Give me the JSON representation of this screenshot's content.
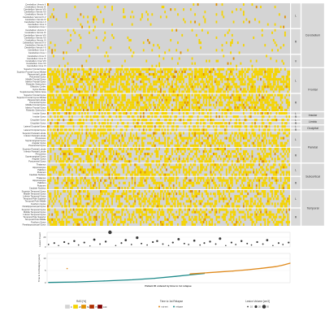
{
  "heatmap": {
    "labels": [
      "Cerebellum Vermis X",
      "Cerebellum Vermis IX",
      "Cerebellum Vermis VIII",
      "Cerebellum Vermis VII",
      "Cerebellum Vermis VI",
      "Cerebellum Vermis IV-V",
      "Cerebellum Vermis III",
      "Cerebellum Vermis I-II",
      "Cerebellum Crus II",
      "Cerebellum Crus I",
      "Cerebellum Vermis X",
      "Cerebellum Vermis IX",
      "Cerebellum Vermis VIII",
      "Cerebellum Vermis VII",
      "Cerebellum Vermis VI",
      "Cerebellum Vermis IV-V",
      "Cerebellum Vermis III",
      "Cerebellum Vermis I-II",
      "Cerebellum Crus II",
      "Cerebellum Crus I",
      "Cerebellum Crus X",
      "Cerebellum Crus IX",
      "Cerebellum Crus VIII",
      "Cerebellum Crus VII",
      "Cerebellum Crus VI",
      "Superior Frontal Gyrus",
      "Superior Frontal Gyrus Medial",
      "Paracentral Lobule",
      "Precentral Gyrus",
      "Middle Frontal Gyrus",
      "Inferior Frontal Gyrus",
      "Rolandic Operculum",
      "Olfactory Cortex",
      "Gyrus Rectus",
      "Supplementary Motor Area",
      "Superior Frontal Gyrus",
      "Superior Frontal Gyrus Medial",
      "Paracentral Lobule",
      "Precentral Gyrus",
      "Middle Frontal Gyrus",
      "Inferior Frontal Gyrus",
      "Rolandic Operculum",
      "Insular Gyrus",
      "Insular Gyrus",
      "Cingulate Gyrus",
      "Cingulate Gyrus",
      "Lateral Occipital Gyrus",
      "Lateral Occipital Gyrus",
      "Superior Parietal Lobule",
      "Inferior Parietal Lobule",
      "Precuneus",
      "Supramarginal Gyrus",
      "Angular Gyrus",
      "Postcentral Gyrus",
      "Superior Parietal Lobule",
      "Inferior Parietal Lobule",
      "Precuneus",
      "Supramarginal Gyrus",
      "Angular Gyrus",
      "Postcentral Gyrus",
      "Thalamus",
      "Hippocampus",
      "Pallidum",
      "Putamen",
      "Caudate Nucleus",
      "Thalamus",
      "Hippocampus",
      "Pallidum",
      "Putamen",
      "Caudate Nucleus",
      "Superior Temporal Gyrus",
      "Middle Temporal Gyrus",
      "Inferior Temporal Gyrus",
      "Temporal Pole Superior",
      "Temporal Pole Middle",
      "Fusiform Gyrus",
      "Parahippocampal Gyrus",
      "Superior Temporal Gyrus",
      "Middle Temporal Gyrus",
      "Inferior Temporal Gyrus",
      "Temporal Pole Superior",
      "Temporal Pole Middle",
      "Fusiform Gyrus",
      "Parahippocampal Gyrus"
    ],
    "groups": [
      {
        "side": "L",
        "rows": 10
      },
      {
        "side": "R",
        "rows": 10
      },
      {
        "side": "V",
        "rows": 5
      },
      {
        "side": "L",
        "rows": 10
      },
      {
        "side": "R",
        "rows": 7
      },
      {
        "side": "L",
        "rows": 1
      },
      {
        "side": "R",
        "rows": 1
      },
      {
        "side": "L",
        "rows": 1
      },
      {
        "side": "R",
        "rows": 1
      },
      {
        "side": "L",
        "rows": 1
      },
      {
        "side": "R",
        "rows": 1
      },
      {
        "side": "L",
        "rows": 6
      },
      {
        "side": "R",
        "rows": 6
      },
      {
        "side": "L",
        "rows": 5
      },
      {
        "side": "R",
        "rows": 5
      },
      {
        "side": "L",
        "rows": 7
      },
      {
        "side": "R",
        "rows": 7
      }
    ],
    "regions": [
      {
        "name": "Cerebellum",
        "from": 0,
        "to": 2
      },
      {
        "name": "Frontal",
        "from": 3,
        "to": 4
      },
      {
        "name": "Insular",
        "from": 5,
        "to": 6
      },
      {
        "name": "Limbic",
        "from": 7,
        "to": 8
      },
      {
        "name": "Occipital",
        "from": 9,
        "to": 10
      },
      {
        "name": "Parietal",
        "from": 11,
        "to": 12
      },
      {
        "name": "Subcortical",
        "from": 13,
        "to": 14
      },
      {
        "name": "Temporal",
        "from": 15,
        "to": 16
      }
    ]
  },
  "lesion_count": {
    "ylabel": "Lesion Count",
    "ticks": [
      0,
      20
    ]
  },
  "relapse": {
    "ylabel": "Time to 1st Relapse (years)",
    "xlabel": "Patient ID ordered by time to 1st relapse",
    "ticks": [
      0,
      5,
      10
    ]
  },
  "legends": {
    "ras": {
      "title": "RAS [%]",
      "items": [
        {
          "label": "0",
          "color": "#d4d4d4"
        },
        {
          "label": "25",
          "color": "#f5d400"
        },
        {
          "label": "50",
          "color": "#e09000"
        },
        {
          "label": "75",
          "color": "#b03000"
        },
        {
          "label": "100",
          "color": "#800000"
        }
      ]
    },
    "relapse": {
      "title": "Time to 1st Relapse",
      "items": [
        {
          "label": "not-set",
          "color": "#e08a1c"
        },
        {
          "label": "relapse",
          "color": "#1e8a8a"
        }
      ]
    },
    "volume": {
      "title": "Lesion Volume [cm3]",
      "items": [
        "10",
        "20",
        "30"
      ]
    }
  },
  "chart_data": [
    {
      "type": "heatmap",
      "xlabel": "",
      "ylabel": "",
      "n_patients": 170
    },
    {
      "type": "scatter",
      "ylabel": "Lesion Count",
      "ylim": [
        0,
        30
      ],
      "grid": true,
      "x": [
        1,
        5,
        8,
        12,
        15,
        19,
        22,
        26,
        30,
        33,
        37,
        41,
        44,
        48,
        52,
        55,
        59,
        63,
        66,
        70,
        74,
        77,
        81,
        85,
        88,
        92,
        96,
        99,
        103,
        107,
        110,
        114,
        118,
        121,
        125,
        129,
        132,
        136,
        140,
        143,
        147,
        151,
        154,
        158,
        162,
        165,
        169
      ],
      "y": [
        5,
        8,
        3,
        10,
        7,
        12,
        4,
        9,
        2,
        15,
        6,
        11,
        30,
        3,
        8,
        14,
        5,
        19,
        7,
        4,
        10,
        12,
        6,
        3,
        9,
        16,
        7,
        5,
        13,
        4,
        8,
        11,
        6,
        17,
        3,
        9,
        5,
        12,
        7,
        4,
        10,
        6,
        14,
        3,
        8,
        5,
        9
      ]
    },
    {
      "type": "line",
      "ylabel": "Time to 1st Relapse (years)",
      "xlabel": "Patient ID ordered by time to 1st relapse",
      "ylim": [
        0,
        12
      ],
      "grid": true,
      "series": [
        {
          "x": [
            1,
            20,
            40,
            60,
            75,
            90,
            100,
            110
          ],
          "y": [
            0.1,
            0.3,
            0.7,
            1.2,
            1.8,
            2.6,
            3.2,
            3.8
          ]
        },
        {
          "x": [
            100,
            110,
            120,
            130,
            140,
            150,
            160,
            165,
            170
          ],
          "y": [
            3.6,
            4.0,
            4.4,
            4.8,
            5.3,
            5.9,
            6.6,
            7.2,
            8.0
          ]
        }
      ],
      "outlier": {
        "x": 14,
        "y": 5.8
      }
    }
  ]
}
